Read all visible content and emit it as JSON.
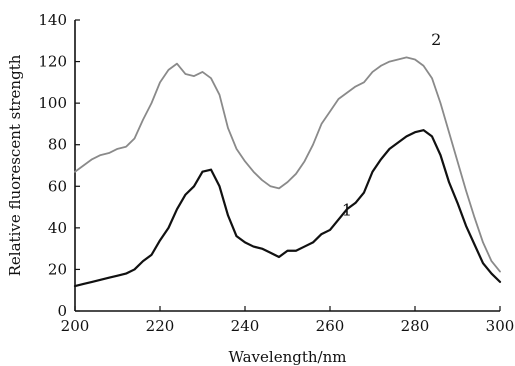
{
  "chart_data": {
    "type": "line",
    "title": "",
    "xlabel": "Wavelength/nm",
    "ylabel": "Relative fluorescent strength",
    "xlim": [
      200,
      300
    ],
    "ylim": [
      0,
      140
    ],
    "x_ticks": [
      200,
      220,
      240,
      260,
      280,
      300
    ],
    "y_ticks": [
      0,
      20,
      40,
      60,
      80,
      100,
      120,
      140
    ],
    "x_tick_labels": [
      "200",
      "220",
      "240",
      "260",
      "280",
      "300"
    ],
    "y_tick_labels": [
      "0",
      "20",
      "40",
      "60",
      "80",
      "100",
      "120",
      "140"
    ],
    "grid": false,
    "legend": "none",
    "series": [
      {
        "label": "1",
        "color": "#111111",
        "x": [
          200,
          202,
          204,
          206,
          208,
          210,
          212,
          214,
          216,
          218,
          220,
          222,
          224,
          226,
          228,
          230,
          232,
          234,
          236,
          238,
          240,
          242,
          244,
          246,
          248,
          250,
          252,
          254,
          256,
          258,
          260,
          262,
          264,
          266,
          268,
          270,
          272,
          274,
          276,
          278,
          280,
          282,
          284,
          286,
          288,
          290,
          292,
          294,
          296,
          298,
          300
        ],
        "y": [
          12,
          13,
          14,
          15,
          16,
          17,
          18,
          20,
          24,
          27,
          34,
          40,
          49,
          56,
          60,
          67,
          68,
          60,
          46,
          36,
          33,
          31,
          30,
          28,
          26,
          29,
          29,
          31,
          33,
          37,
          39,
          44,
          49,
          52,
          57,
          67,
          73,
          78,
          81,
          84,
          86,
          87,
          84,
          75,
          62,
          52,
          41,
          32,
          23,
          18,
          14
        ]
      },
      {
        "label": "2",
        "color": "#8a8a8a",
        "x": [
          200,
          202,
          204,
          206,
          208,
          210,
          212,
          214,
          216,
          218,
          220,
          222,
          224,
          226,
          228,
          230,
          232,
          234,
          236,
          238,
          240,
          242,
          244,
          246,
          248,
          250,
          252,
          254,
          256,
          258,
          260,
          262,
          264,
          266,
          268,
          270,
          272,
          274,
          276,
          278,
          280,
          282,
          284,
          286,
          288,
          290,
          292,
          294,
          296,
          298,
          300
        ],
        "y": [
          67,
          70,
          73,
          75,
          76,
          78,
          79,
          83,
          92,
          100,
          110,
          116,
          119,
          114,
          113,
          115,
          112,
          104,
          88,
          78,
          72,
          67,
          63,
          60,
          59,
          62,
          66,
          72,
          80,
          90,
          96,
          102,
          105,
          108,
          110,
          115,
          118,
          120,
          121,
          122,
          121,
          118,
          112,
          100,
          86,
          72,
          58,
          45,
          33,
          24,
          19
        ]
      }
    ],
    "series_label_positions": {
      "1": [
        264,
        46
      ],
      "2": [
        285,
        128
      ]
    }
  }
}
